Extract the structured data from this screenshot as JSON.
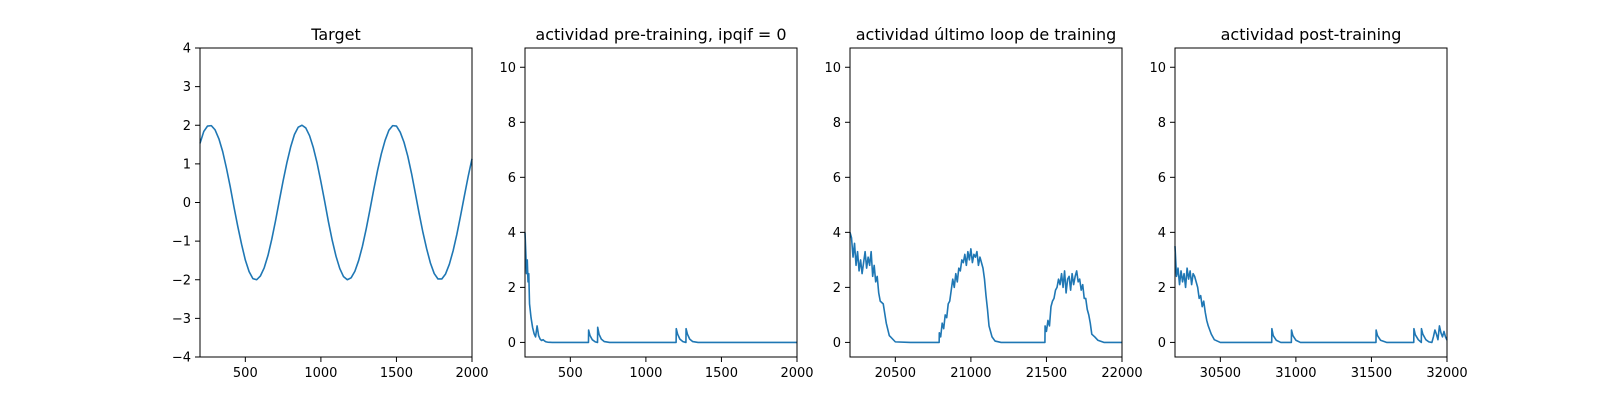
{
  "chart_data": [
    {
      "type": "line",
      "title": "Target",
      "xlim": [
        200,
        2000
      ],
      "ylim": [
        -4,
        4
      ],
      "xticks": [
        500,
        1000,
        1500,
        2000
      ],
      "yticks": [
        -4,
        -3,
        -2,
        -1,
        0,
        1,
        2,
        3,
        4
      ],
      "xticklabels": [
        "500",
        "1000",
        "1500",
        "2000"
      ],
      "yticklabels": [
        "−4",
        "−3",
        "−2",
        "−1",
        "0",
        "1",
        "2",
        "3",
        "4"
      ],
      "grid": false,
      "series": [
        {
          "color": "#1f77b4",
          "x": [
            200,
            225,
            250,
            275,
            300,
            325,
            350,
            375,
            400,
            425,
            450,
            475,
            500,
            525,
            550,
            575,
            600,
            625,
            650,
            675,
            700,
            725,
            750,
            775,
            800,
            825,
            850,
            875,
            900,
            925,
            950,
            975,
            1000,
            1025,
            1050,
            1075,
            1100,
            1125,
            1150,
            1175,
            1200,
            1225,
            1250,
            1275,
            1300,
            1325,
            1350,
            1375,
            1400,
            1425,
            1450,
            1475,
            1500,
            1525,
            1550,
            1575,
            1600,
            1625,
            1650,
            1675,
            1700,
            1725,
            1750,
            1775,
            1800,
            1825,
            1850,
            1875,
            1900,
            1925,
            1950,
            1975,
            2000
          ],
          "y": [
            1.53,
            1.84,
            1.98,
            1.99,
            1.88,
            1.65,
            1.32,
            0.89,
            0.41,
            -0.12,
            -0.62,
            -1.08,
            -1.49,
            -1.79,
            -1.97,
            -2.0,
            -1.9,
            -1.69,
            -1.37,
            -0.95,
            -0.47,
            0.05,
            0.56,
            1.03,
            1.44,
            1.76,
            1.95,
            2.0,
            1.93,
            1.73,
            1.42,
            1.02,
            0.54,
            0.03,
            -0.5,
            -0.98,
            -1.39,
            -1.71,
            -1.92,
            -2.0,
            -1.95,
            -1.78,
            -1.5,
            -1.13,
            -0.68,
            -0.18,
            0.34,
            0.83,
            1.26,
            1.61,
            1.87,
            1.99,
            1.98,
            1.82,
            1.56,
            1.2,
            0.75,
            0.24,
            -0.28,
            -0.77,
            -1.2,
            -1.57,
            -1.84,
            -1.98,
            -1.98,
            -1.85,
            -1.6,
            -1.25,
            -0.82,
            -0.33,
            0.18,
            0.68,
            1.13
          ]
        }
      ]
    },
    {
      "type": "line",
      "title": "actividad pre-training, ipqif = 0",
      "xlim": [
        200,
        2000
      ],
      "ylim": [
        -0.53,
        10.7
      ],
      "xticks": [
        500,
        1000,
        1500,
        2000
      ],
      "yticks": [
        0,
        2,
        4,
        6,
        8,
        10
      ],
      "xticklabels": [
        "500",
        "1000",
        "1500",
        "2000"
      ],
      "yticklabels": [
        "0",
        "2",
        "4",
        "6",
        "8",
        "10"
      ],
      "grid": false,
      "series": [
        {
          "color": "#1f77b4",
          "x": [
            200,
            205,
            210,
            215,
            220,
            225,
            230,
            240,
            250,
            260,
            270,
            280,
            290,
            300,
            310,
            320,
            330,
            340,
            350,
            380,
            450,
            550,
            620,
            621,
            630,
            645,
            665,
            680,
            681,
            690,
            705,
            725,
            760,
            900,
            1180,
            1200,
            1201,
            1210,
            1225,
            1245,
            1265,
            1266,
            1275,
            1290,
            1310,
            1345,
            1500,
            1800,
            2000
          ],
          "y": [
            4.0,
            3.3,
            2.5,
            3.0,
            2.2,
            2.5,
            1.4,
            0.9,
            0.55,
            0.32,
            0.2,
            0.6,
            0.25,
            0.12,
            0.07,
            0.1,
            0.05,
            0.02,
            0.01,
            0.0,
            0.0,
            0.0,
            0.0,
            0.45,
            0.25,
            0.1,
            0.02,
            0.0,
            0.55,
            0.3,
            0.12,
            0.03,
            0.0,
            0.0,
            0.0,
            0.0,
            0.5,
            0.3,
            0.12,
            0.03,
            0.0,
            0.5,
            0.3,
            0.12,
            0.03,
            0.0,
            0.0,
            0.0,
            0.0
          ]
        }
      ]
    },
    {
      "type": "line",
      "title": "actividad último loop de training",
      "xlim": [
        20200,
        22000
      ],
      "ylim": [
        -0.53,
        10.7
      ],
      "xticks": [
        20500,
        21000,
        21500,
        22000
      ],
      "yticks": [
        0,
        2,
        4,
        6,
        8,
        10
      ],
      "xticklabels": [
        "20500",
        "21000",
        "21500",
        "22000"
      ],
      "yticklabels": [
        "0",
        "2",
        "4",
        "6",
        "8",
        "10"
      ],
      "grid": false,
      "series": [
        {
          "color": "#1f77b4",
          "x": [
            20200,
            20210,
            20220,
            20230,
            20240,
            20250,
            20260,
            20270,
            20280,
            20290,
            20300,
            20310,
            20320,
            20330,
            20340,
            20350,
            20360,
            20370,
            20380,
            20390,
            20400,
            20420,
            20440,
            20460,
            20500,
            20600,
            20700,
            20790,
            20791,
            20800,
            20810,
            20820,
            20830,
            20840,
            20850,
            20860,
            20870,
            20880,
            20890,
            20900,
            20910,
            20920,
            20930,
            20940,
            20950,
            20960,
            20970,
            20980,
            20990,
            21000,
            21010,
            21020,
            21030,
            21040,
            21050,
            21060,
            21070,
            21080,
            21090,
            21100,
            21110,
            21120,
            21140,
            21160,
            21200,
            21300,
            21400,
            21490,
            21491,
            21500,
            21510,
            21520,
            21530,
            21540,
            21550,
            21560,
            21570,
            21580,
            21590,
            21600,
            21610,
            21620,
            21630,
            21640,
            21650,
            21660,
            21670,
            21680,
            21690,
            21700,
            21710,
            21720,
            21730,
            21740,
            21750,
            21760,
            21770,
            21780,
            21790,
            21800,
            21820,
            21840,
            21880,
            21950,
            22000
          ],
          "y": [
            4.0,
            3.8,
            3.1,
            3.6,
            2.8,
            3.3,
            2.6,
            3.0,
            2.5,
            2.9,
            3.3,
            2.7,
            3.1,
            2.8,
            3.3,
            2.4,
            2.8,
            2.2,
            2.4,
            1.8,
            1.5,
            1.4,
            0.7,
            0.25,
            0.02,
            0.0,
            0.0,
            0.0,
            0.35,
            0.2,
            0.7,
            0.5,
            1.0,
            0.9,
            1.4,
            1.5,
            1.9,
            2.3,
            2.0,
            2.5,
            2.2,
            2.7,
            2.6,
            3.0,
            2.9,
            3.2,
            2.8,
            3.3,
            3.0,
            3.4,
            2.9,
            3.2,
            3.1,
            3.3,
            2.8,
            3.1,
            2.9,
            2.7,
            2.3,
            1.7,
            1.2,
            0.6,
            0.2,
            0.05,
            0.0,
            0.0,
            0.0,
            0.0,
            0.6,
            0.4,
            0.8,
            0.6,
            1.3,
            1.5,
            1.6,
            1.9,
            2.0,
            2.3,
            2.1,
            2.5,
            2.0,
            2.6,
            1.8,
            2.3,
            2.4,
            1.9,
            2.5,
            2.1,
            2.4,
            2.6,
            2.2,
            2.3,
            1.9,
            2.1,
            1.6,
            1.6,
            1.2,
            1.0,
            0.7,
            0.3,
            0.2,
            0.08,
            0.0,
            0.0,
            0.0
          ]
        }
      ]
    },
    {
      "type": "line",
      "title": "actividad post-training",
      "xlim": [
        30200,
        32000
      ],
      "ylim": [
        -0.53,
        10.7
      ],
      "xticks": [
        30500,
        31000,
        31500,
        32000
      ],
      "yticks": [
        0,
        2,
        4,
        6,
        8,
        10
      ],
      "xticklabels": [
        "30500",
        "31000",
        "31500",
        "32000"
      ],
      "yticklabels": [
        "0",
        "2",
        "4",
        "6",
        "8",
        "10"
      ],
      "grid": false,
      "series": [
        {
          "color": "#1f77b4",
          "x": [
            30200,
            30210,
            30220,
            30230,
            30240,
            30250,
            30260,
            30270,
            30280,
            30290,
            30300,
            30310,
            30320,
            30330,
            30340,
            30350,
            30360,
            30370,
            30380,
            30390,
            30400,
            30410,
            30420,
            30440,
            30460,
            30500,
            30600,
            30700,
            30840,
            30841,
            30850,
            30870,
            30900,
            30970,
            30971,
            30980,
            31000,
            31030,
            31200,
            31400,
            31530,
            31531,
            31540,
            31560,
            31600,
            31700,
            31780,
            31781,
            31790,
            31810,
            31830,
            31831,
            31840,
            31860,
            31880,
            31900,
            31910,
            31920,
            31930,
            31940,
            31950,
            31960,
            31970,
            31980,
            31990,
            32000
          ],
          "y": [
            3.5,
            2.4,
            2.7,
            2.1,
            2.6,
            2.2,
            2.5,
            2.0,
            2.7,
            2.3,
            2.6,
            2.1,
            2.5,
            2.4,
            2.2,
            2.0,
            1.6,
            1.7,
            1.3,
            1.5,
            1.1,
            0.8,
            0.6,
            0.3,
            0.1,
            0.0,
            0.0,
            0.0,
            0.0,
            0.5,
            0.25,
            0.08,
            0.0,
            0.0,
            0.45,
            0.25,
            0.08,
            0.0,
            0.0,
            0.0,
            0.0,
            0.45,
            0.25,
            0.08,
            0.0,
            0.0,
            0.0,
            0.5,
            0.28,
            0.1,
            0.0,
            0.5,
            0.3,
            0.1,
            0.02,
            0.0,
            0.2,
            0.45,
            0.3,
            0.1,
            0.6,
            0.35,
            0.2,
            0.4,
            0.2,
            0.08
          ]
        }
      ]
    }
  ]
}
